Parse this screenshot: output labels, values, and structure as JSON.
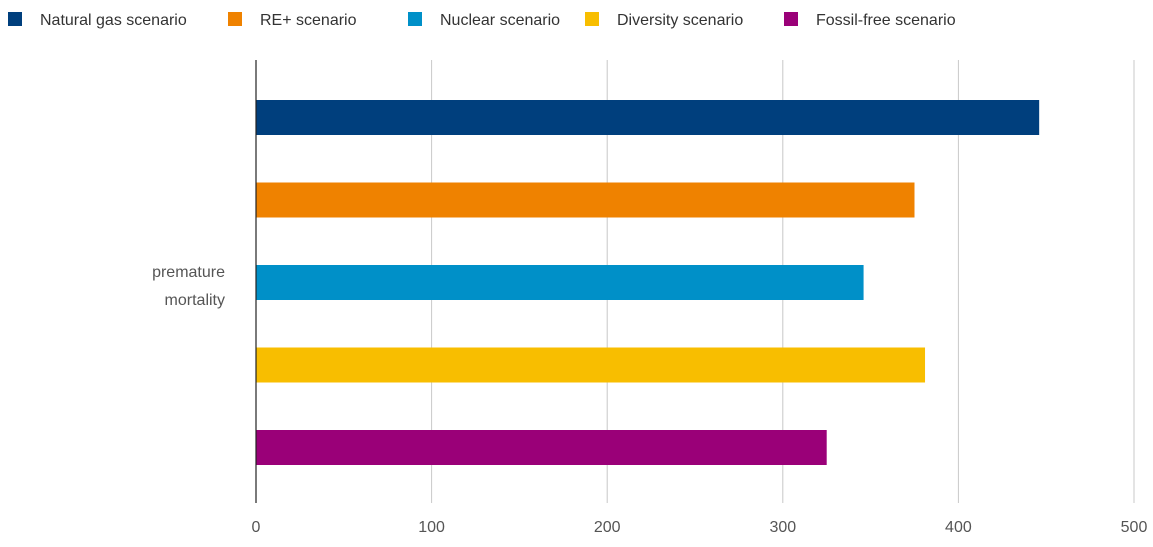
{
  "chart_data": {
    "type": "bar",
    "orientation": "horizontal",
    "categories": [
      "premature mortality"
    ],
    "category_label_lines": [
      "premature",
      "mortality"
    ],
    "series": [
      {
        "name": "Natural gas scenario",
        "values": [
          446
        ],
        "color": "#003f7d"
      },
      {
        "name": "RE+ scenario",
        "values": [
          375
        ],
        "color": "#ef8200"
      },
      {
        "name": "Nuclear scenario",
        "values": [
          346
        ],
        "color": "#0090c8"
      },
      {
        "name": "Diversity scenario",
        "values": [
          381
        ],
        "color": "#f8be00"
      },
      {
        "name": "Fossil-free scenario",
        "values": [
          325
        ],
        "color": "#9a0078"
      }
    ],
    "xlim": [
      0,
      500
    ],
    "xticks": [
      "0",
      "100",
      "200",
      "300",
      "400",
      "500"
    ],
    "grid": true,
    "legend_position": "top",
    "title": "",
    "xlabel": "",
    "ylabel": ""
  }
}
